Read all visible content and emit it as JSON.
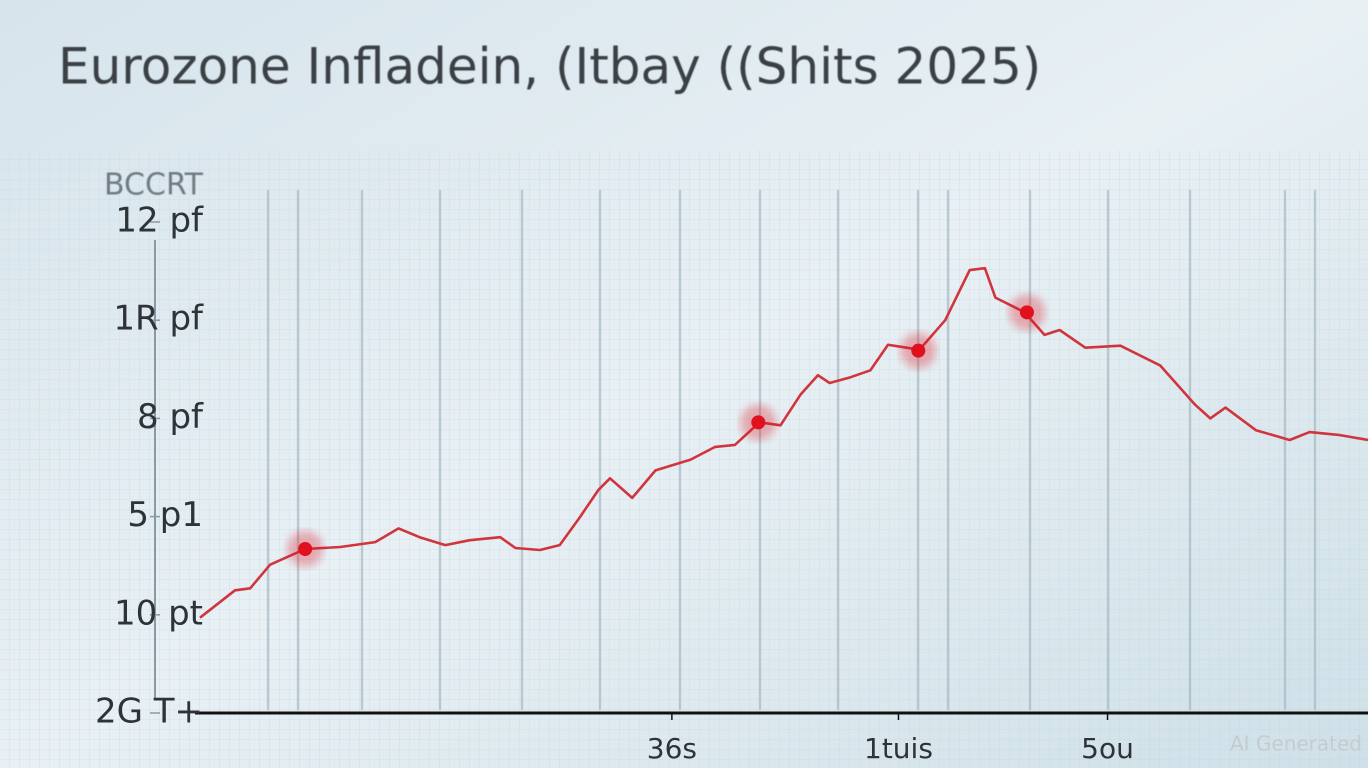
{
  "chart_data": {
    "type": "line",
    "title": "Eurozone Infladein, (Itbay ((Shits 2025)",
    "ylabel": "BCCRT",
    "annotation": "AI Generated",
    "xlim": [
      0,
      100
    ],
    "xticks": [
      {
        "value": 40.4,
        "label": "36s"
      },
      {
        "value": 59.8,
        "label": "1tuis"
      },
      {
        "value": 77.7,
        "label": "5ou"
      }
    ],
    "ylim": [
      0,
      5
    ],
    "yticks": [
      {
        "value": 0,
        "label": "2G T+"
      },
      {
        "value": 1,
        "label": "10 pt"
      },
      {
        "value": 2,
        "label": "5 p1"
      },
      {
        "value": 3,
        "label": "8 pf"
      },
      {
        "value": 4,
        "label": "1R pf"
      },
      {
        "value": 5,
        "label": "12 pf"
      }
    ],
    "x": [
      0,
      3.0,
      4.3,
      6.0,
      9.0,
      12.0,
      15.0,
      17.0,
      18.8,
      21.0,
      23.1,
      25.7,
      27.0,
      29.1,
      30.8,
      32.5,
      34.1,
      35.1,
      37.0,
      39.0,
      42.0,
      44.1,
      45.8,
      47.9,
      49.7,
      51.4,
      52.9,
      53.9,
      55.7,
      57.4,
      58.9,
      61.6,
      63.8,
      65.9,
      67.2,
      68.1,
      70.6,
      72.3,
      73.6,
      75.8,
      78.8,
      82.2,
      85.2,
      86.5,
      87.8,
      90.4,
      93.3,
      95.0,
      97.6,
      100
    ],
    "series": [
      {
        "color": "#d0353e",
        "values": [
          0.97,
          1.25,
          1.27,
          1.51,
          1.67,
          1.69,
          1.74,
          1.88,
          1.79,
          1.71,
          1.76,
          1.79,
          1.68,
          1.66,
          1.71,
          1.99,
          2.27,
          2.39,
          2.19,
          2.47,
          2.58,
          2.71,
          2.73,
          2.96,
          2.93,
          3.24,
          3.44,
          3.36,
          3.42,
          3.49,
          3.75,
          3.7,
          4.0,
          4.51,
          4.53,
          4.23,
          4.08,
          3.85,
          3.9,
          3.72,
          3.74,
          3.54,
          3.14,
          3.0,
          3.11,
          2.88,
          2.78,
          2.86,
          2.83,
          2.78
        ]
      }
    ],
    "highlights": {
      "color": "#e0101c",
      "x": [
        9.0,
        47.8,
        61.5,
        70.8
      ],
      "values": [
        1.67,
        2.96,
        3.69,
        4.08
      ]
    }
  }
}
